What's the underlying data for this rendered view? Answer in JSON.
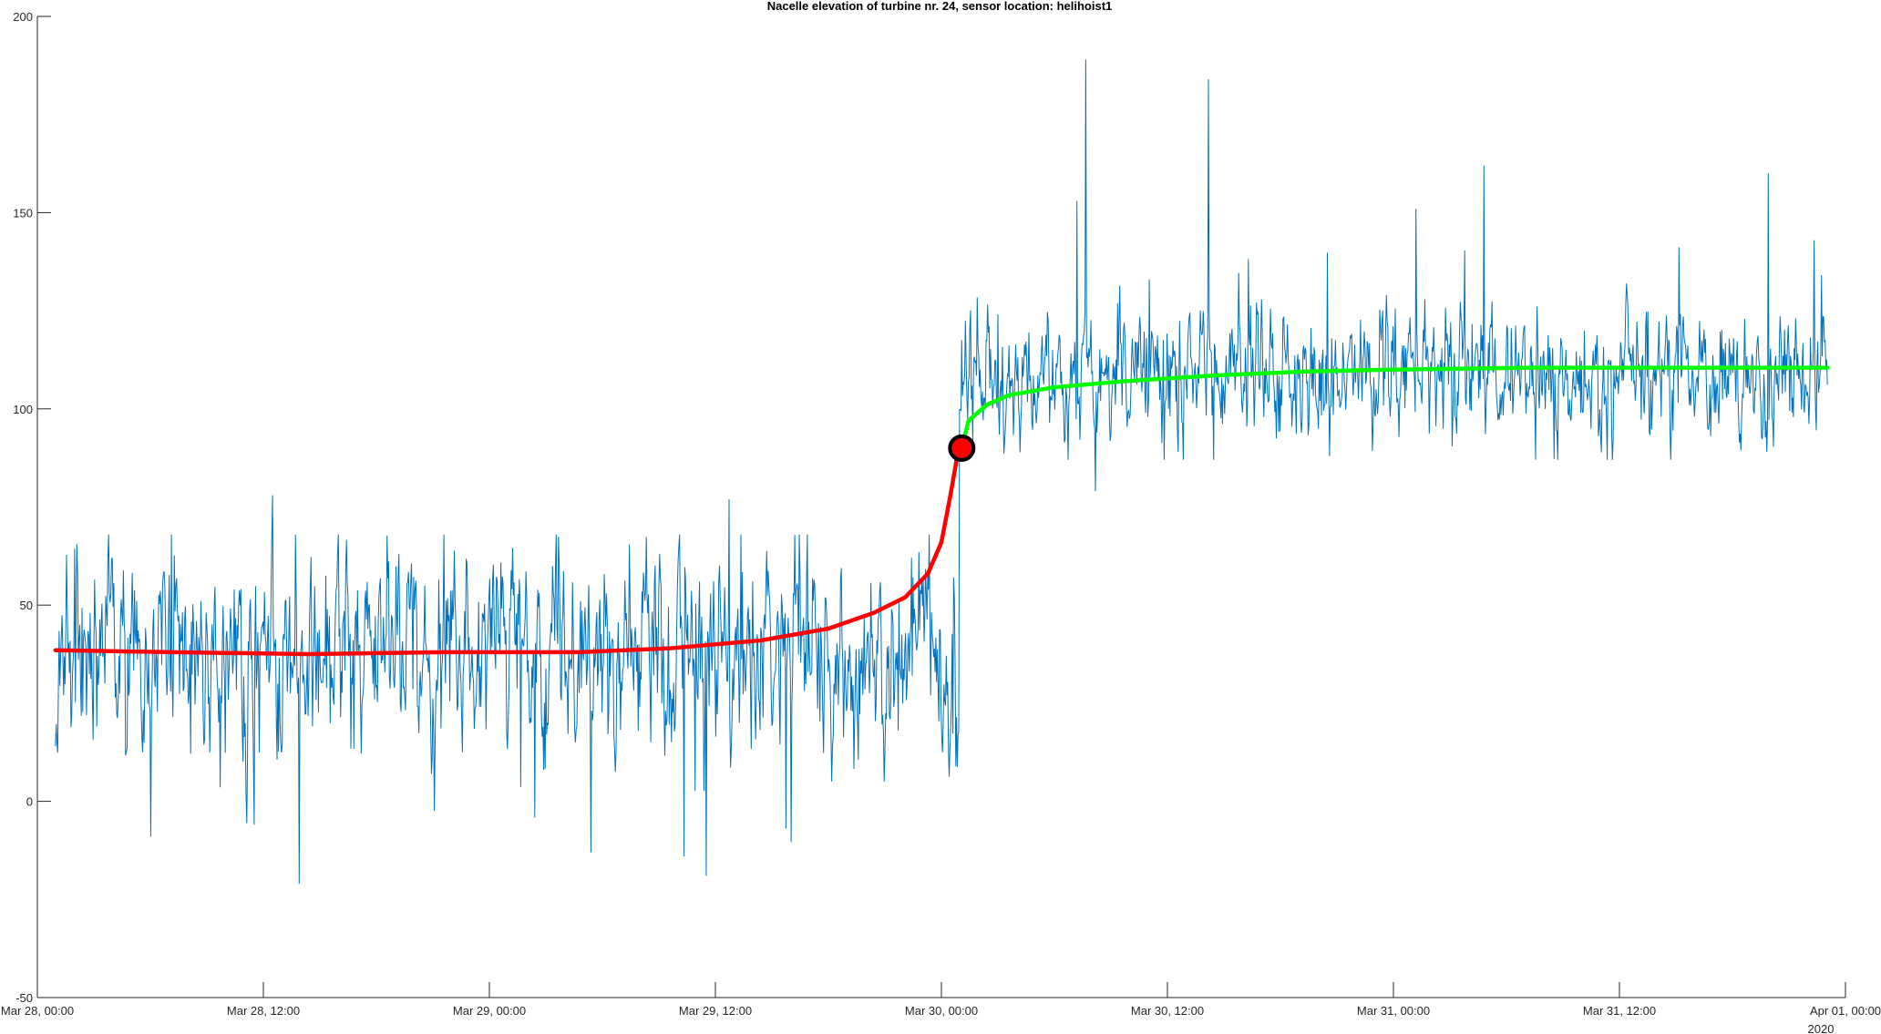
{
  "chart_data": {
    "type": "line",
    "title": "Nacelle elevation of turbine nr. 24, sensor location: helihoist1",
    "xlabel": "",
    "ylabel": "",
    "x_unit": "days since Mar 28, 2020 00:00",
    "xlim": [
      0,
      4
    ],
    "ylim": [
      -50,
      200
    ],
    "grid": false,
    "legend": "none",
    "x_tick_values": [
      0,
      0.5,
      1,
      1.5,
      2,
      2.5,
      3,
      3.5,
      4
    ],
    "x_tick_labels": [
      "Mar 28, 00:00",
      "Mar 28, 12:00",
      "Mar 29, 00:00",
      "Mar 29, 12:00",
      "Mar 30, 00:00",
      "Mar 30, 12:00",
      "Mar 31, 00:00",
      "Mar 31, 12:00",
      "Apr 01, 00:00"
    ],
    "x_year_label": "2020",
    "y_tick_values": [
      -50,
      0,
      50,
      100,
      150,
      200
    ],
    "y_tick_labels": [
      "-50",
      "0",
      "50",
      "100",
      "150",
      "200"
    ],
    "raw_signal": {
      "color": "#0072BD",
      "start": 0.04,
      "end": 3.96,
      "points": 2400,
      "before_step": {
        "mean": 38,
        "std": 12,
        "min": -21,
        "max": 78
      },
      "after_step": {
        "mean": 108,
        "std": 8,
        "min": 79,
        "max": 189
      },
      "step_time": 2.04,
      "spikes": [
        {
          "x": 0.58,
          "y": -21
        },
        {
          "x": 1.48,
          "y": -19
        },
        {
          "x": 1.43,
          "y": -14
        },
        {
          "x": 0.48,
          "y": -6
        },
        {
          "x": 0.25,
          "y": -9
        },
        {
          "x": 0.52,
          "y": 78
        },
        {
          "x": 1.53,
          "y": 77
        },
        {
          "x": 2.3,
          "y": 153
        },
        {
          "x": 2.32,
          "y": 189
        },
        {
          "x": 2.34,
          "y": 79
        },
        {
          "x": 2.59,
          "y": 184
        },
        {
          "x": 3.05,
          "y": 151
        },
        {
          "x": 3.2,
          "y": 162
        },
        {
          "x": 3.83,
          "y": 160
        },
        {
          "x": 3.93,
          "y": 143
        }
      ]
    },
    "series": [
      {
        "name": "",
        "color": "#FF0000",
        "x": [
          0.04,
          0.3,
          0.6,
          0.9,
          1.2,
          1.4,
          1.6,
          1.75,
          1.85,
          1.92,
          1.97,
          2.0,
          2.02,
          2.035,
          2.045
        ],
        "y": [
          38.5,
          38,
          37.5,
          38,
          38,
          39,
          41,
          44,
          48,
          52,
          58,
          66,
          78,
          88,
          90
        ]
      },
      {
        "name": "",
        "color": "#00FF00",
        "x": [
          2.045,
          2.06,
          2.1,
          2.15,
          2.25,
          2.4,
          2.6,
          2.8,
          3.0,
          3.3,
          3.6,
          3.96
        ],
        "y": [
          90,
          97,
          101,
          103.5,
          105.5,
          107,
          108.5,
          109.5,
          110,
          110.5,
          110.5,
          110.5
        ]
      }
    ],
    "marker": {
      "x": 2.045,
      "y": 90,
      "fill": "#FF0000",
      "edge": "#000000"
    }
  }
}
